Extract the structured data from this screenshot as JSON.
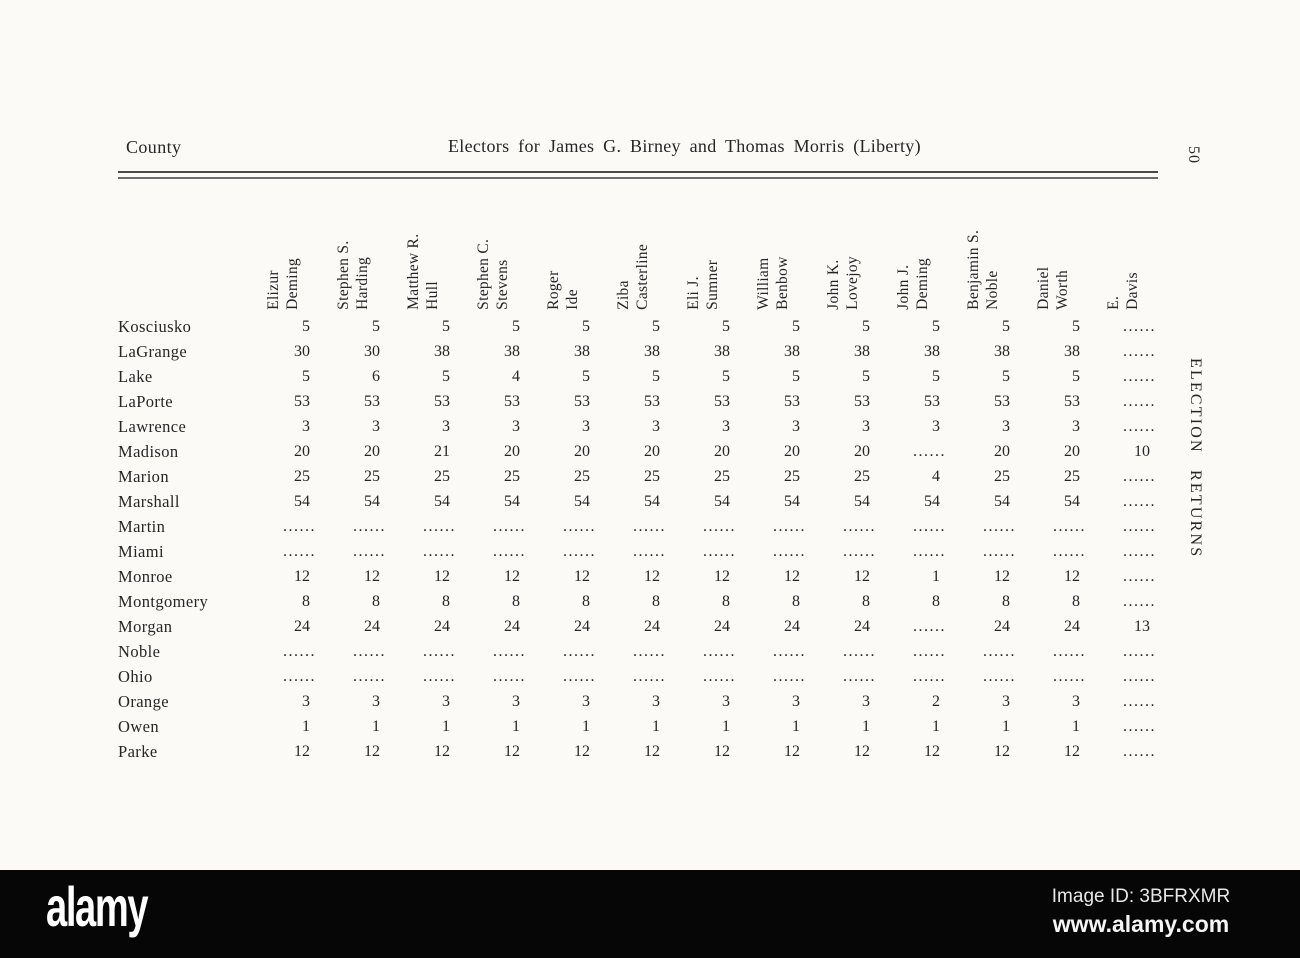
{
  "colors": {
    "paper": "#fbfaf7",
    "ink": "#262626",
    "watermark_bar": "#060606",
    "watermark_text": "#ffffff"
  },
  "header": {
    "county_label": "County",
    "title": "Electors for James G. Birney and Thomas Morris (Liberty)",
    "page_number": "50",
    "side_label": "ELECTION RETURNS"
  },
  "chart_data": {
    "type": "table",
    "title": "Electors for James G. Birney and Thomas Morris (Liberty)",
    "columns": [
      {
        "line1": "Elizur",
        "line2": "Deming"
      },
      {
        "line1": "Stephen S.",
        "line2": "Harding"
      },
      {
        "line1": "Matthew R.",
        "line2": "Hull"
      },
      {
        "line1": "Stephen C.",
        "line2": "Stevens"
      },
      {
        "line1": "Roger",
        "line2": "Ide"
      },
      {
        "line1": "Ziba",
        "line2": "Casterline"
      },
      {
        "line1": "Eli J.",
        "line2": "Sumner"
      },
      {
        "line1": "William",
        "line2": "Benbow"
      },
      {
        "line1": "John K.",
        "line2": "Lovejoy"
      },
      {
        "line1": "John J.",
        "line2": "Deming"
      },
      {
        "line1": "Benjamin S.",
        "line2": "Noble"
      },
      {
        "line1": "Daniel",
        "line2": "Worth"
      },
      {
        "line1": "E.",
        "line2": "Davis"
      }
    ],
    "rows": [
      {
        "county": "Kosciusko",
        "values": [
          "5",
          "5",
          "5",
          "5",
          "5",
          "5",
          "5",
          "5",
          "5",
          "5",
          "5",
          "5",
          "......"
        ]
      },
      {
        "county": "LaGrange",
        "values": [
          "30",
          "30",
          "38",
          "38",
          "38",
          "38",
          "38",
          "38",
          "38",
          "38",
          "38",
          "38",
          "......"
        ]
      },
      {
        "county": "Lake",
        "values": [
          "5",
          "6",
          "5",
          "4",
          "5",
          "5",
          "5",
          "5",
          "5",
          "5",
          "5",
          "5",
          "......"
        ]
      },
      {
        "county": "LaPorte",
        "values": [
          "53",
          "53",
          "53",
          "53",
          "53",
          "53",
          "53",
          "53",
          "53",
          "53",
          "53",
          "53",
          "......"
        ]
      },
      {
        "county": "Lawrence",
        "values": [
          "3",
          "3",
          "3",
          "3",
          "3",
          "3",
          "3",
          "3",
          "3",
          "3",
          "3",
          "3",
          "......"
        ]
      },
      {
        "county": "Madison",
        "values": [
          "20",
          "20",
          "21",
          "20",
          "20",
          "20",
          "20",
          "20",
          "20",
          "......",
          "20",
          "20",
          "10"
        ]
      },
      {
        "county": "Marion",
        "values": [
          "25",
          "25",
          "25",
          "25",
          "25",
          "25",
          "25",
          "25",
          "25",
          "4",
          "25",
          "25",
          "......"
        ]
      },
      {
        "county": "Marshall",
        "values": [
          "54",
          "54",
          "54",
          "54",
          "54",
          "54",
          "54",
          "54",
          "54",
          "54",
          "54",
          "54",
          "......"
        ]
      },
      {
        "county": "Martin",
        "values": [
          "......",
          "......",
          "......",
          "......",
          "......",
          "......",
          "......",
          "......",
          "......",
          "......",
          "......",
          "......",
          "......"
        ]
      },
      {
        "county": "Miami",
        "values": [
          "......",
          "......",
          "......",
          "......",
          "......",
          "......",
          "......",
          "......",
          "......",
          "......",
          "......",
          "......",
          "......"
        ]
      },
      {
        "county": "Monroe",
        "values": [
          "12",
          "12",
          "12",
          "12",
          "12",
          "12",
          "12",
          "12",
          "12",
          "1",
          "12",
          "12",
          "......"
        ]
      },
      {
        "county": "Montgomery",
        "values": [
          "8",
          "8",
          "8",
          "8",
          "8",
          "8",
          "8",
          "8",
          "8",
          "8",
          "8",
          "8",
          "......"
        ]
      },
      {
        "county": "Morgan",
        "values": [
          "24",
          "24",
          "24",
          "24",
          "24",
          "24",
          "24",
          "24",
          "24",
          "......",
          "24",
          "24",
          "13"
        ]
      },
      {
        "county": "Noble",
        "values": [
          "......",
          "......",
          "......",
          "......",
          "......",
          "......",
          "......",
          "......",
          "......",
          "......",
          "......",
          "......",
          "......"
        ]
      },
      {
        "county": "Ohio",
        "values": [
          "......",
          "......",
          "......",
          "......",
          "......",
          "......",
          "......",
          "......",
          "......",
          "......",
          "......",
          "......",
          "......"
        ]
      },
      {
        "county": "Orange",
        "values": [
          "3",
          "3",
          "3",
          "3",
          "3",
          "3",
          "3",
          "3",
          "3",
          "2",
          "3",
          "3",
          "......"
        ]
      },
      {
        "county": "Owen",
        "values": [
          "1",
          "1",
          "1",
          "1",
          "1",
          "1",
          "1",
          "1",
          "1",
          "1",
          "1",
          "1",
          "......"
        ]
      },
      {
        "county": "Parke",
        "values": [
          "12",
          "12",
          "12",
          "12",
          "12",
          "12",
          "12",
          "12",
          "12",
          "12",
          "12",
          "12",
          "......"
        ]
      }
    ]
  },
  "watermark": {
    "logo": "alamy",
    "image_id": "Image ID: 3BFRXMR",
    "url": "www.alamy.com"
  }
}
